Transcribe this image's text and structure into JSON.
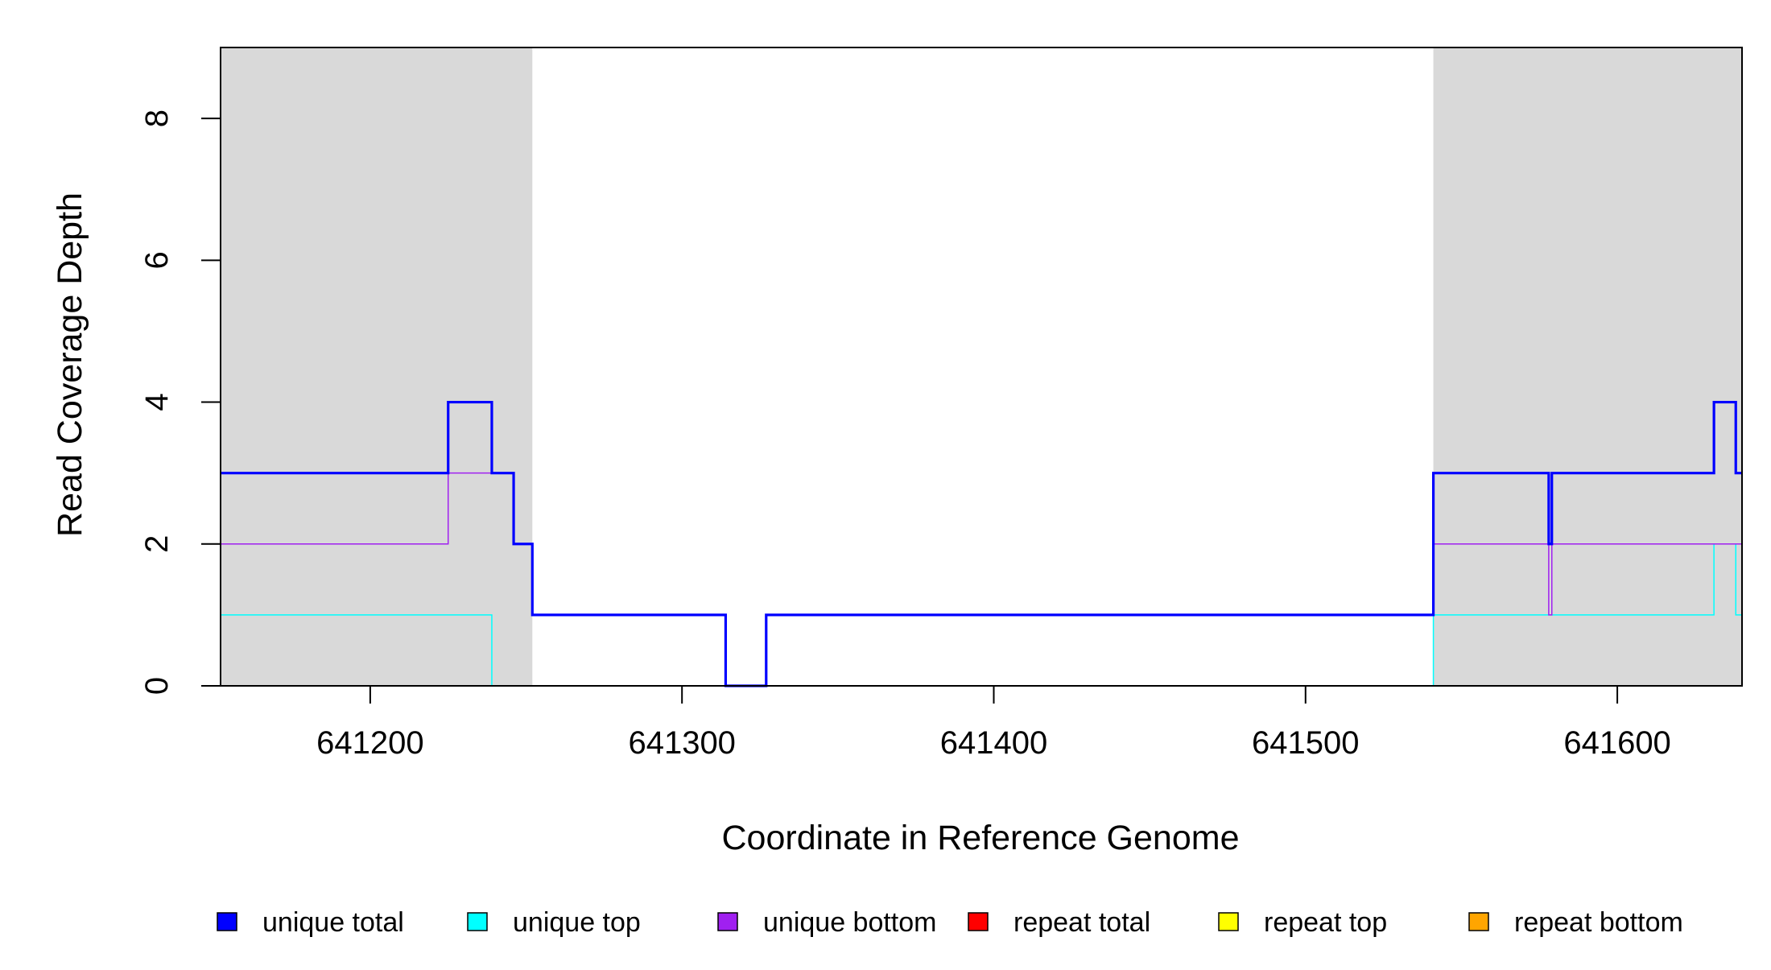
{
  "chart_data": {
    "type": "line",
    "title": "",
    "xlabel": "Coordinate in Reference Genome",
    "ylabel": "Read Coverage Depth",
    "xlim": [
      641152,
      641640
    ],
    "ylim": [
      0,
      9
    ],
    "x_ticks": [
      641200,
      641300,
      641400,
      641500,
      641600
    ],
    "y_ticks": [
      0,
      2,
      4,
      6,
      8
    ],
    "x_tick_labels": [
      "641200",
      "641300",
      "641400",
      "641500",
      "641600"
    ],
    "y_tick_labels": [
      "0",
      "2",
      "4",
      "6",
      "8"
    ],
    "grid": false,
    "shaded_regions": [
      [
        641152,
        641252
      ],
      [
        641541,
        641640
      ]
    ],
    "shade_color": "#d9d9d9",
    "legend_placement": "bottom",
    "series": [
      {
        "name": "unique total",
        "color": "#0000ff",
        "points": [
          [
            641152,
            3
          ],
          [
            641225,
            3
          ],
          [
            641225,
            4
          ],
          [
            641239,
            4
          ],
          [
            641239,
            3
          ],
          [
            641246,
            3
          ],
          [
            641246,
            2
          ],
          [
            641252,
            2
          ],
          [
            641252,
            1
          ],
          [
            641314,
            1
          ],
          [
            641314,
            0
          ],
          [
            641327,
            0
          ],
          [
            641327,
            1
          ],
          [
            641541,
            1
          ],
          [
            641541,
            3
          ],
          [
            641578,
            3
          ],
          [
            641578,
            2
          ],
          [
            641579,
            2
          ],
          [
            641579,
            3
          ],
          [
            641631,
            3
          ],
          [
            641631,
            4
          ],
          [
            641638,
            4
          ],
          [
            641638,
            3
          ],
          [
            641640,
            3
          ]
        ]
      },
      {
        "name": "unique top",
        "color": "#00ffff",
        "points": [
          [
            641152,
            1
          ],
          [
            641239,
            1
          ],
          [
            641239,
            0
          ],
          [
            641541,
            0
          ],
          [
            641541,
            1
          ],
          [
            641631,
            1
          ],
          [
            641631,
            2
          ],
          [
            641638,
            2
          ],
          [
            641638,
            1
          ],
          [
            641640,
            1
          ]
        ]
      },
      {
        "name": "unique bottom",
        "color": "#a020f0",
        "points": [
          [
            641152,
            2
          ],
          [
            641225,
            2
          ],
          [
            641225,
            3
          ],
          [
            641246,
            3
          ],
          [
            641246,
            2
          ],
          [
            641252,
            2
          ],
          [
            641252,
            1
          ],
          [
            641314,
            1
          ],
          [
            641314,
            0
          ],
          [
            641327,
            0
          ],
          [
            641327,
            1
          ],
          [
            641541,
            1
          ],
          [
            641541,
            2
          ],
          [
            641578,
            2
          ],
          [
            641578,
            1
          ],
          [
            641579,
            1
          ],
          [
            641579,
            2
          ],
          [
            641640,
            2
          ]
        ]
      },
      {
        "name": "repeat total",
        "color": "#ff0000",
        "points": [
          [
            641152,
            0
          ],
          [
            641640,
            0
          ]
        ]
      },
      {
        "name": "repeat top",
        "color": "#ffff00",
        "points": [
          [
            641152,
            0
          ],
          [
            641640,
            0
          ]
        ]
      },
      {
        "name": "repeat bottom",
        "color": "#ffa500",
        "points": [
          [
            641152,
            0
          ],
          [
            641640,
            0
          ]
        ]
      }
    ]
  }
}
